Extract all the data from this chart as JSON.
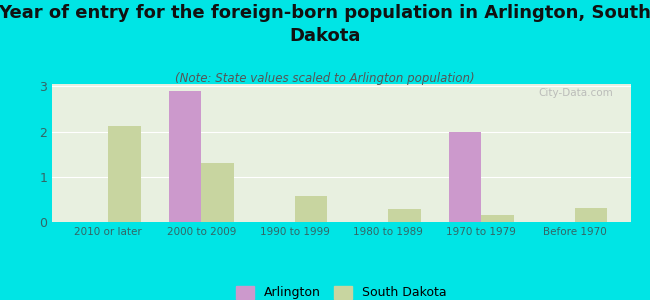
{
  "title": "Year of entry for the foreign-born population in Arlington, South\nDakota",
  "subtitle": "(Note: State values scaled to Arlington population)",
  "categories": [
    "2010 or later",
    "2000 to 2009",
    "1990 to 1999",
    "1980 to 1989",
    "1970 to 1979",
    "Before 1970"
  ],
  "arlington_values": [
    0,
    2.9,
    0,
    0,
    2.0,
    0
  ],
  "south_dakota_values": [
    2.12,
    1.3,
    0.58,
    0.28,
    0.15,
    0.3
  ],
  "arlington_color": "#cc99cc",
  "south_dakota_color": "#c8d5a0",
  "background_color": "#00e5e5",
  "plot_bg_color": "#e8f0e0",
  "title_fontsize": 13,
  "subtitle_fontsize": 8.5,
  "ylabel_max": 3,
  "yticks": [
    0,
    1,
    2,
    3
  ],
  "bar_width": 0.35,
  "watermark": "City-Data.com",
  "legend_arlington": "Arlington",
  "legend_sd": "South Dakota"
}
